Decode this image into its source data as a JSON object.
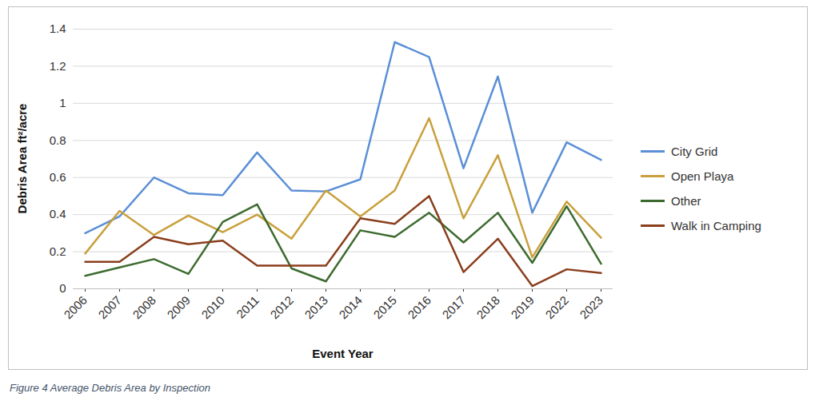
{
  "chart_data": {
    "type": "line",
    "caption": "Figure 4 Average Debris Area by Inspection",
    "x_label": "Event Year",
    "y_label": "Debris Area ft²/acre",
    "categories": [
      "2006",
      "2007",
      "2008",
      "2009",
      "2010",
      "2011",
      "2012",
      "2013",
      "2014",
      "2015",
      "2016",
      "2017",
      "2018",
      "2019",
      "2022",
      "2023"
    ],
    "series": [
      {
        "name": "City Grid",
        "color": "#5b8fd6",
        "values": [
          0.3,
          0.39,
          0.6,
          0.515,
          0.505,
          0.735,
          0.53,
          0.525,
          0.59,
          1.33,
          1.25,
          0.65,
          1.145,
          0.41,
          0.79,
          0.695
        ]
      },
      {
        "name": "Open Playa",
        "color": "#c9a03c",
        "values": [
          0.19,
          0.42,
          0.29,
          0.395,
          0.305,
          0.4,
          0.27,
          0.53,
          0.39,
          0.53,
          0.92,
          0.38,
          0.72,
          0.17,
          0.47,
          0.275
        ]
      },
      {
        "name": "Other",
        "color": "#3d6b2f",
        "values": [
          0.07,
          0.115,
          0.16,
          0.08,
          0.36,
          0.455,
          0.11,
          0.04,
          0.315,
          0.28,
          0.41,
          0.25,
          0.41,
          0.14,
          0.445,
          0.135
        ]
      },
      {
        "name": "Walk in Camping",
        "color": "#8a3e1c",
        "values": [
          0.145,
          0.145,
          0.28,
          0.24,
          0.26,
          0.125,
          0.125,
          0.125,
          0.38,
          0.35,
          0.5,
          0.09,
          0.27,
          0.015,
          0.105,
          0.085
        ]
      }
    ],
    "ylim": [
      0,
      1.4
    ],
    "yticks": [
      0,
      0.2,
      0.4,
      0.6,
      0.8,
      1,
      1.2,
      1.4
    ],
    "grid": true,
    "legend": "right"
  }
}
